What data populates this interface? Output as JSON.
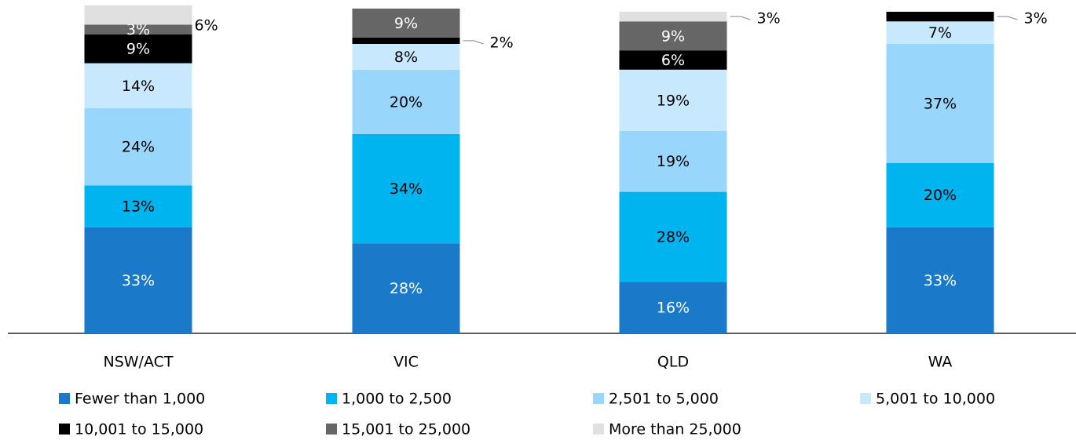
{
  "chart_data": {
    "type": "stacked_bar",
    "categories": [
      "NSW/ACT",
      "VIC",
      "QLD",
      "WA"
    ],
    "series": [
      {
        "name": "Fewer than 1,000",
        "color": "#1a7ac9",
        "values": [
          33,
          28,
          16,
          33
        ],
        "value_labels": [
          "33%",
          "28%",
          "16%",
          "33%"
        ]
      },
      {
        "name": "1,000 to 2,500",
        "color": "#00b4f0",
        "values": [
          13,
          34,
          28,
          20
        ],
        "value_labels": [
          "13%",
          "34%",
          "28%",
          "20%"
        ]
      },
      {
        "name": "2,501 to 5,000",
        "color": "#99d6fc",
        "values": [
          24,
          20,
          19,
          37
        ],
        "value_labels": [
          "24%",
          "20%",
          "19%",
          "37%"
        ]
      },
      {
        "name": "5,001 to 10,000",
        "color": "#c8e9fd",
        "values": [
          14,
          8,
          19,
          7
        ],
        "value_labels": [
          "14%",
          "8%",
          "19%",
          "7%"
        ]
      },
      {
        "name": "10,001 to 15,000",
        "color": "#000000",
        "values": [
          9,
          2,
          6,
          3
        ],
        "value_labels": [
          "9%",
          "2%",
          "6%",
          "3%"
        ]
      },
      {
        "name": "15,001 to 25,000",
        "color": "#666666",
        "values": [
          3,
          9,
          9,
          0
        ],
        "value_labels": [
          "3%",
          "9%",
          "9%",
          null
        ]
      },
      {
        "name": "More than 25,000",
        "color": "#e0e0e0",
        "values": [
          6,
          0,
          3,
          0
        ],
        "value_labels": [
          "6%",
          null,
          "3%",
          null
        ]
      }
    ]
  }
}
